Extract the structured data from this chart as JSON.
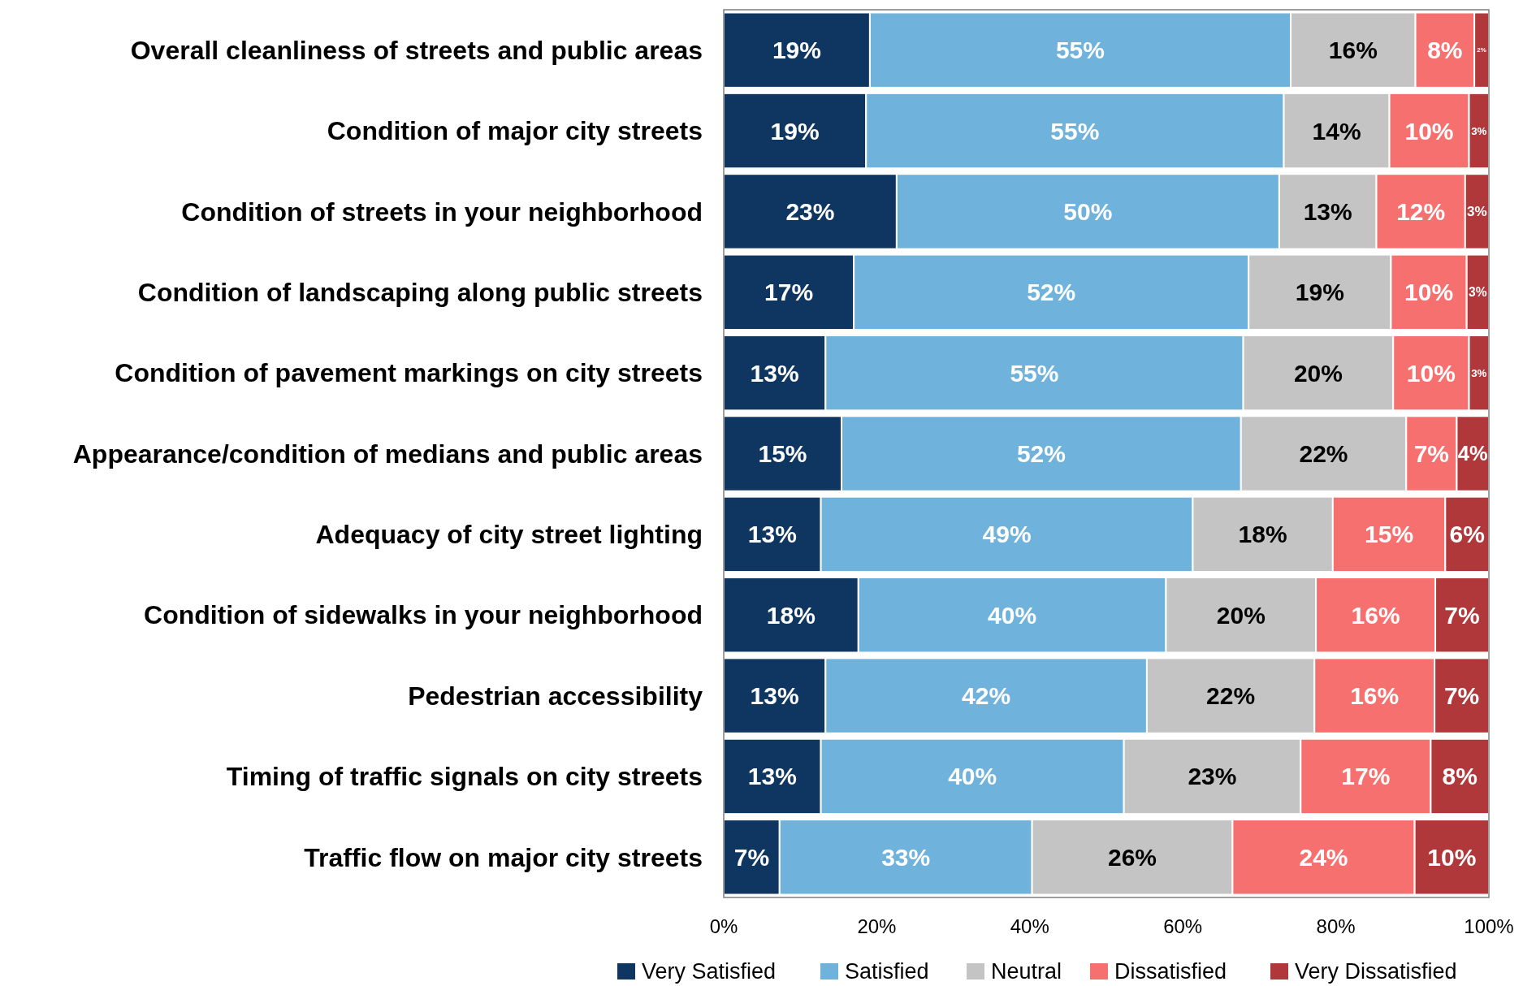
{
  "chart_data": {
    "type": "bar",
    "orientation": "horizontal",
    "stacked": true,
    "legend": "bottom",
    "categories": [
      "Overall cleanliness of streets and public areas",
      "Condition of major city streets",
      "Condition of streets in your neighborhood",
      "Condition of landscaping along public streets",
      "Condition of pavement markings on city streets",
      "Appearance/condition of medians and public areas",
      "Adequacy of city street lighting",
      "Condition of sidewalks in your neighborhood",
      "Pedestrian accessibility",
      "Timing of traffic signals on city streets",
      "Traffic flow on major city streets"
    ],
    "xlim": [
      0,
      100
    ],
    "xticks": [
      {
        "value": 0,
        "label": "0%"
      },
      {
        "value": 20,
        "label": "20%"
      },
      {
        "value": 40,
        "label": "40%"
      },
      {
        "value": 60,
        "label": "60%"
      },
      {
        "value": 80,
        "label": "80%"
      },
      {
        "value": 100,
        "label": "100%"
      }
    ],
    "series": [
      {
        "name": "Very Satisfied",
        "color": "#0e3660",
        "values": [
          19.1,
          18.6,
          22.6,
          17.0,
          13.3,
          15.4,
          12.7,
          17.6,
          13.3,
          12.7,
          7.3
        ],
        "value_labels": [
          "19%",
          "19%",
          "23%",
          "17%",
          "13%",
          "15%",
          "13%",
          "18%",
          "13%",
          "13%",
          "7%"
        ]
      },
      {
        "name": "Satisfied",
        "color": "#6fb2dc",
        "values": [
          55.0,
          54.6,
          50.0,
          51.6,
          54.6,
          52.2,
          48.6,
          40.2,
          42.0,
          39.6,
          33.0
        ],
        "value_labels": [
          "55%",
          "55%",
          "50%",
          "52%",
          "55%",
          "52%",
          "49%",
          "40%",
          "42%",
          "40%",
          "33%"
        ]
      },
      {
        "name": "Neutral",
        "color": "#c4c4c4",
        "values": [
          16.3,
          13.8,
          12.7,
          18.6,
          19.6,
          21.6,
          18.3,
          19.6,
          21.9,
          23.1,
          26.2
        ],
        "value_labels": [
          "16%",
          "14%",
          "13%",
          "19%",
          "20%",
          "22%",
          "18%",
          "20%",
          "22%",
          "23%",
          "26%"
        ]
      },
      {
        "name": "Dissatisfied",
        "color": "#f77070",
        "values": [
          7.7,
          10.4,
          11.6,
          9.9,
          9.9,
          6.6,
          14.7,
          15.6,
          15.7,
          17.0,
          23.8
        ],
        "value_labels": [
          "8%",
          "10%",
          "12%",
          "10%",
          "10%",
          "7%",
          "15%",
          "16%",
          "16%",
          "17%",
          "24%"
        ]
      },
      {
        "name": "Very Dissatisfied",
        "color": "#b0383b",
        "values": [
          1.9,
          2.6,
          3.1,
          2.9,
          2.6,
          4.2,
          5.7,
          7.0,
          7.1,
          7.6,
          9.7
        ],
        "value_labels": [
          "2%",
          "3%",
          "3%",
          "3%",
          "3%",
          "4%",
          "6%",
          "7%",
          "7%",
          "8%",
          "10%"
        ]
      }
    ]
  }
}
